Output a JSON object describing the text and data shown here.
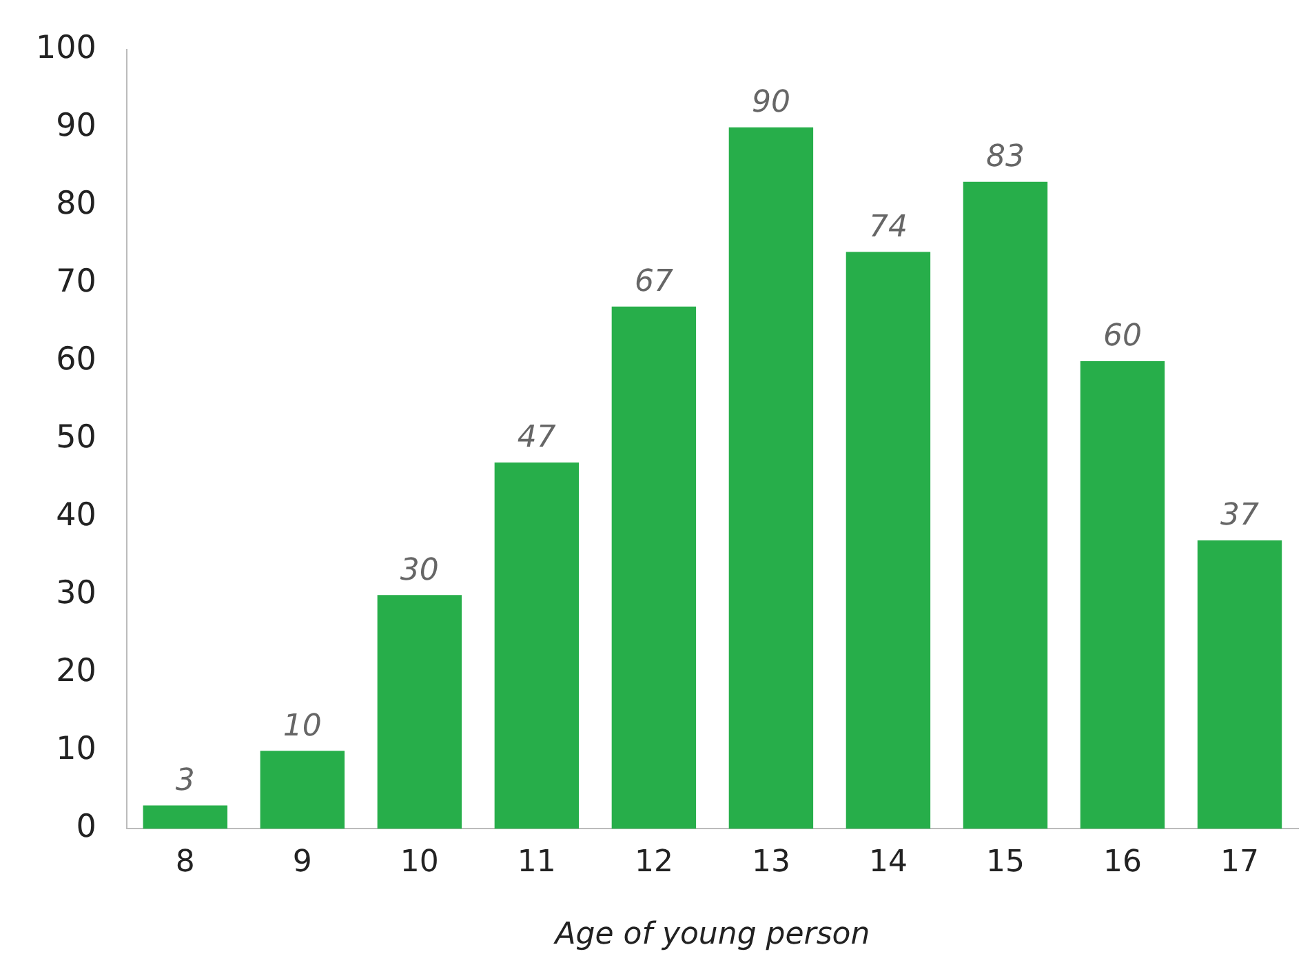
{
  "chart_data": {
    "type": "bar",
    "xlabel": "Age of young person",
    "categories": [
      "8",
      "9",
      "10",
      "11",
      "12",
      "13",
      "14",
      "15",
      "16",
      "17"
    ],
    "values": [
      3,
      10,
      30,
      47,
      67,
      90,
      74,
      83,
      60,
      37
    ],
    "color": "#27ae4a",
    "ylim": [
      0,
      100
    ],
    "yticks": [
      0,
      10,
      20,
      30,
      40,
      50,
      60,
      70,
      80,
      90,
      100
    ],
    "grid": false,
    "legend": false,
    "data_labels": true
  }
}
